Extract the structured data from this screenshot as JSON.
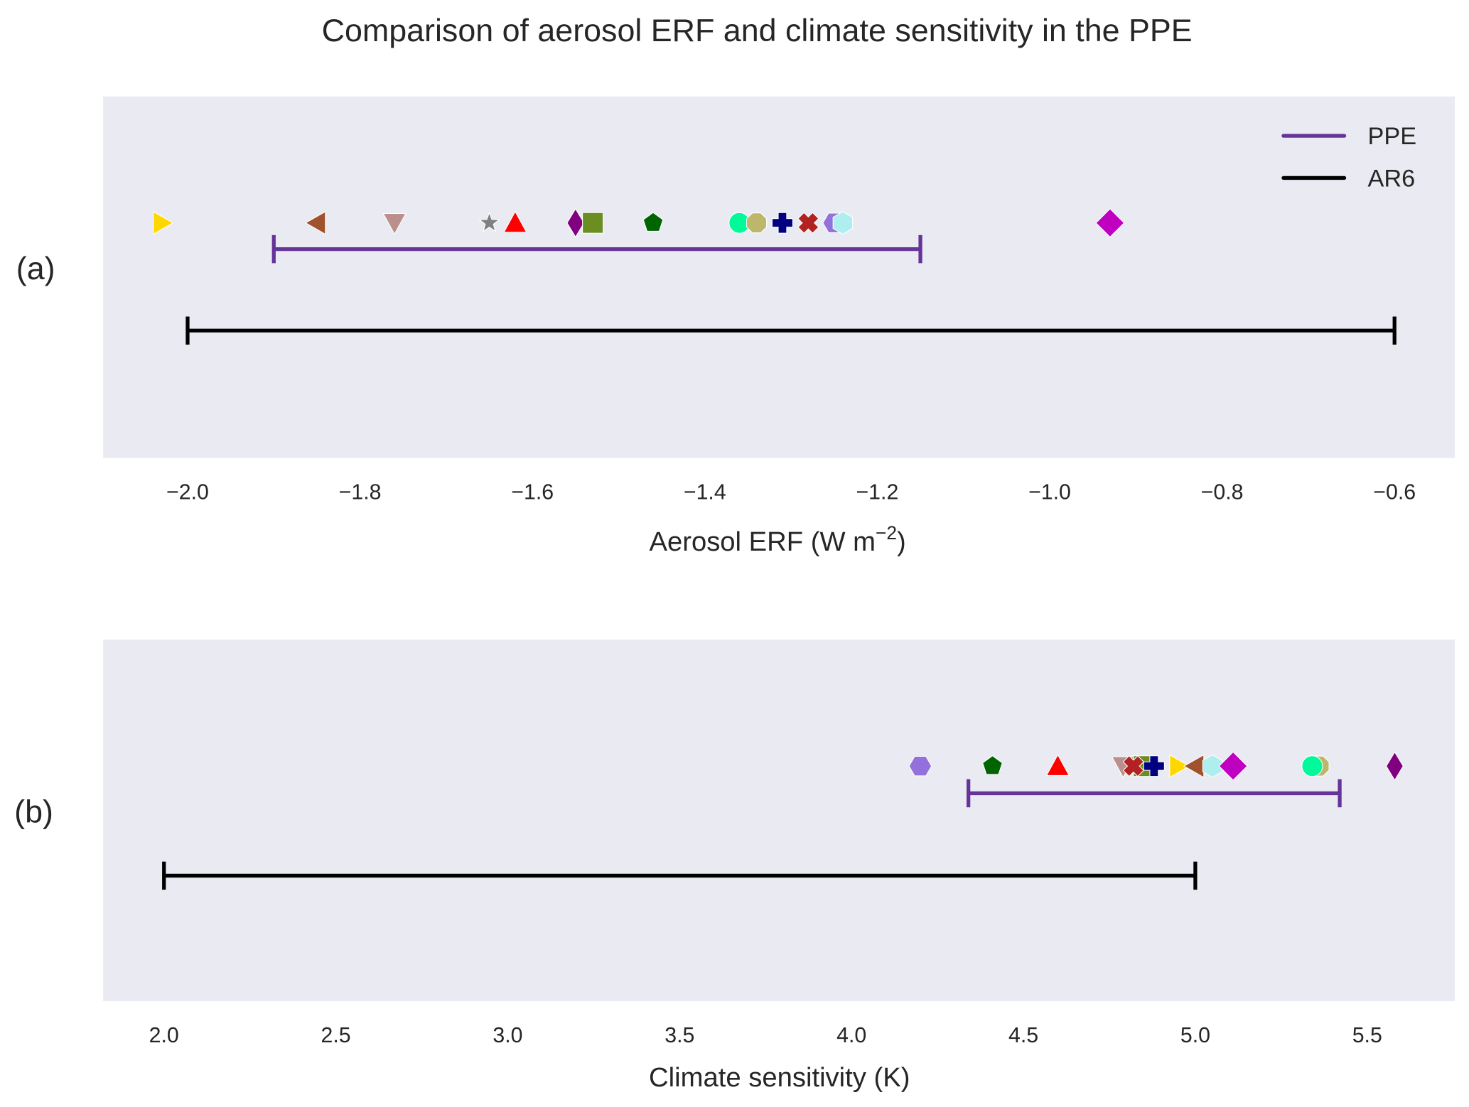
{
  "chart_data": {
    "title": "Comparison of aerosol ERF and climate sensitivity in the PPE",
    "legend": {
      "placement": "top-right of panel (a)",
      "entries": [
        {
          "label": "PPE",
          "color": "#663399"
        },
        {
          "label": "AR6",
          "color": "#000000"
        }
      ]
    },
    "panels": [
      {
        "id": "a",
        "panel_label": "(a)",
        "type": "scatter",
        "xlabel": "Aerosol ERF (W m",
        "xlabel_sup": "−2",
        "xlabel_end": ")",
        "xlim": [
          -2.098,
          -0.53
        ],
        "xticks": [
          -2.0,
          -1.8,
          -1.6,
          -1.4,
          -1.2,
          -1.0,
          -0.8,
          -0.6
        ],
        "xtick_labels": [
          "−2.0",
          "−1.8",
          "−1.6",
          "−1.4",
          "−1.2",
          "−1.0",
          "−0.8",
          "−0.6"
        ],
        "grid": false,
        "ranges": [
          {
            "name": "PPE",
            "min": -1.9,
            "max": -1.15,
            "color": "#663399"
          },
          {
            "name": "AR6",
            "min": -2.0,
            "max": -0.6,
            "color": "#000000"
          }
        ],
        "points": [
          {
            "marker": "triangle-right",
            "color": "#FFD700",
            "x": -2.03
          },
          {
            "marker": "triangle-left",
            "color": "#A0522D",
            "x": -1.85
          },
          {
            "marker": "triangle-down",
            "color": "#BC8F8F",
            "x": -1.76
          },
          {
            "marker": "star",
            "color": "#808080",
            "x": -1.65
          },
          {
            "marker": "triangle-up",
            "color": "#FF0000",
            "x": -1.62
          },
          {
            "marker": "thin-diamond",
            "color": "#800080",
            "x": -1.55
          },
          {
            "marker": "square",
            "color": "#6B8E23",
            "x": -1.53
          },
          {
            "marker": "pentagon",
            "color": "#006400",
            "x": -1.46
          },
          {
            "marker": "circle",
            "color": "#00FA9A",
            "x": -1.36
          },
          {
            "marker": "octagon",
            "color": "#BDB76B",
            "x": -1.34
          },
          {
            "marker": "plus",
            "color": "#000080",
            "x": -1.31
          },
          {
            "marker": "x",
            "color": "#B22222",
            "x": -1.28
          },
          {
            "marker": "hexagon-flat",
            "color": "#9370DB",
            "x": -1.25
          },
          {
            "marker": "hexagon",
            "color": "#AFEEEE",
            "x": -1.24
          },
          {
            "marker": "diamond",
            "color": "#C000C0",
            "x": -0.93
          }
        ]
      },
      {
        "id": "b",
        "panel_label": "(b)",
        "type": "scatter",
        "xlabel": "Climate sensitivity (K)",
        "xlim": [
          1.823,
          5.755
        ],
        "xticks": [
          2.0,
          2.5,
          3.0,
          3.5,
          4.0,
          4.5,
          5.0,
          5.5
        ],
        "xtick_labels": [
          "2.0",
          "2.5",
          "3.0",
          "3.5",
          "4.0",
          "4.5",
          "5.0",
          "5.5"
        ],
        "grid": false,
        "ranges": [
          {
            "name": "PPE",
            "min": 4.34,
            "max": 5.42,
            "color": "#663399"
          },
          {
            "name": "AR6",
            "min": 2.0,
            "max": 5.0,
            "color": "#000000"
          }
        ],
        "points": [
          {
            "marker": "hexagon-flat",
            "color": "#9370DB",
            "x": 4.2
          },
          {
            "marker": "pentagon",
            "color": "#006400",
            "x": 4.41
          },
          {
            "marker": "triangle-up",
            "color": "#FF0000",
            "x": 4.6
          },
          {
            "marker": "star",
            "color": "#808080",
            "x": 4.8
          },
          {
            "marker": "triangle-down",
            "color": "#BC8F8F",
            "x": 4.79
          },
          {
            "marker": "square",
            "color": "#6B8E23",
            "x": 4.85
          },
          {
            "marker": "x",
            "color": "#B22222",
            "x": 4.82
          },
          {
            "marker": "plus",
            "color": "#000080",
            "x": 4.88
          },
          {
            "marker": "triangle-right",
            "color": "#FFD700",
            "x": 4.95
          },
          {
            "marker": "triangle-left",
            "color": "#A0522D",
            "x": 5.0
          },
          {
            "marker": "hexagon",
            "color": "#AFEEEE",
            "x": 5.05
          },
          {
            "marker": "diamond",
            "color": "#C000C0",
            "x": 5.11
          },
          {
            "marker": "octagon",
            "color": "#BDB76B",
            "x": 5.36
          },
          {
            "marker": "circle",
            "color": "#00FA9A",
            "x": 5.34
          },
          {
            "marker": "thin-diamond",
            "color": "#800080",
            "x": 5.58
          }
        ]
      }
    ]
  }
}
